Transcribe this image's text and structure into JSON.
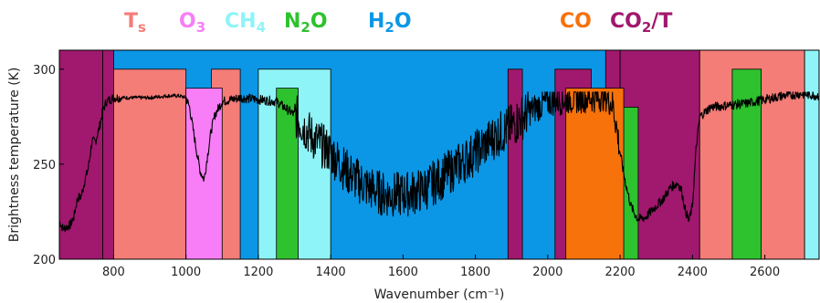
{
  "chart_data": {
    "type": "line",
    "xlabel": "Wavenumber (cm⁻¹)",
    "ylabel": "Brightness temperature (K)",
    "xlim": [
      650,
      2750
    ],
    "ylim": [
      200,
      310
    ],
    "x_ticks": [
      800,
      1000,
      1200,
      1400,
      1600,
      1800,
      2000,
      2200,
      2400,
      2600
    ],
    "y_ticks": [
      200,
      250,
      300
    ],
    "background_color": "#0b97e6",
    "legend": [
      {
        "label": "T",
        "sub": "s",
        "color": "#f47d78"
      },
      {
        "label": "O",
        "sub": "3",
        "color": "#f77ef7"
      },
      {
        "label": "CH",
        "sub": "4",
        "color": "#8ff4f7"
      },
      {
        "label": "N",
        "sub": "2",
        "label2": "O",
        "color": "#2ec22e"
      },
      {
        "label": "H",
        "sub": "2",
        "label2": "O",
        "color": "#0b97e6"
      },
      {
        "label": "CO",
        "sub": "",
        "color": "#f7720b"
      },
      {
        "label": "CO",
        "sub": "2",
        "label2": "/T",
        "color": "#a0196e"
      }
    ],
    "bands": [
      {
        "gas": "CO2/T",
        "x0": 650,
        "x1": 770,
        "top": 310,
        "color": "#a0196e"
      },
      {
        "gas": "CO2/T",
        "x0": 770,
        "x1": 800,
        "top": 310,
        "color": "#a0196e"
      },
      {
        "gas": "CO2/T",
        "x0": 2160,
        "x1": 2200,
        "top": 310,
        "color": "#a0196e"
      },
      {
        "gas": "CO2/T",
        "x0": 2200,
        "x1": 2420,
        "top": 310,
        "color": "#a0196e"
      },
      {
        "gas": "CO2/T",
        "x0": 1890,
        "x1": 1930,
        "top": 300,
        "color": "#a0196e"
      },
      {
        "gas": "CO2/T",
        "x0": 2020,
        "x1": 2120,
        "top": 300,
        "color": "#a0196e"
      },
      {
        "gas": "Ts",
        "x0": 800,
        "x1": 1000,
        "top": 300,
        "color": "#f47d78"
      },
      {
        "gas": "Ts",
        "x0": 1070,
        "x1": 1150,
        "top": 300,
        "color": "#f47d78"
      },
      {
        "gas": "Ts",
        "x0": 2420,
        "x1": 2710,
        "top": 310,
        "color": "#f47d78"
      },
      {
        "gas": "O3",
        "x0": 1000,
        "x1": 1100,
        "top": 290,
        "color": "#f77ef7"
      },
      {
        "gas": "CH4",
        "x0": 1200,
        "x1": 1400,
        "top": 300,
        "color": "#8ff4f7"
      },
      {
        "gas": "CH4",
        "x0": 2710,
        "x1": 2750,
        "top": 310,
        "color": "#8ff4f7"
      },
      {
        "gas": "N2O",
        "x0": 1250,
        "x1": 1310,
        "top": 290,
        "color": "#2ec22e"
      },
      {
        "gas": "N2O",
        "x0": 2180,
        "x1": 2250,
        "top": 280,
        "color": "#2ec22e"
      },
      {
        "gas": "N2O",
        "x0": 2510,
        "x1": 2590,
        "top": 300,
        "color": "#2ec22e"
      },
      {
        "gas": "CO",
        "x0": 2050,
        "x1": 2210,
        "top": 290,
        "color": "#f7720b"
      }
    ],
    "series": [
      {
        "color": "#000000",
        "x": [
          650,
          660,
          670,
          680,
          690,
          700,
          710,
          720,
          730,
          740,
          750,
          760,
          770,
          780,
          790,
          800,
          850,
          900,
          950,
          980,
          1000,
          1010,
          1020,
          1030,
          1040,
          1050,
          1060,
          1070,
          1080,
          1100,
          1150,
          1200,
          1250,
          1300,
          1350,
          1400,
          1450,
          1500,
          1550,
          1600,
          1650,
          1700,
          1750,
          1800,
          1850,
          1900,
          1950,
          2000,
          2050,
          2100,
          2130,
          2160,
          2180,
          2190,
          2200,
          2210,
          2220,
          2230,
          2240,
          2250,
          2270,
          2300,
          2320,
          2340,
          2360,
          2370,
          2380,
          2390,
          2400,
          2410,
          2420,
          2450,
          2500,
          2550,
          2600,
          2650,
          2700,
          2750
        ],
        "y": [
          220,
          216,
          217,
          218,
          222,
          232,
          233,
          241,
          248,
          262,
          262,
          269,
          278,
          283,
          284,
          285,
          285,
          285,
          286,
          286,
          285,
          280,
          268,
          256,
          246,
          242,
          255,
          268,
          276,
          283,
          285,
          284,
          283,
          276,
          264,
          256,
          245,
          238,
          234,
          234,
          236,
          242,
          249,
          256,
          264,
          270,
          278,
          283,
          284,
          285,
          285,
          286,
          281,
          270,
          256,
          245,
          236,
          228,
          224,
          221,
          222,
          228,
          232,
          238,
          240,
          236,
          226,
          220,
          228,
          258,
          275,
          280,
          281,
          282,
          284,
          286,
          287,
          286
        ]
      }
    ]
  }
}
